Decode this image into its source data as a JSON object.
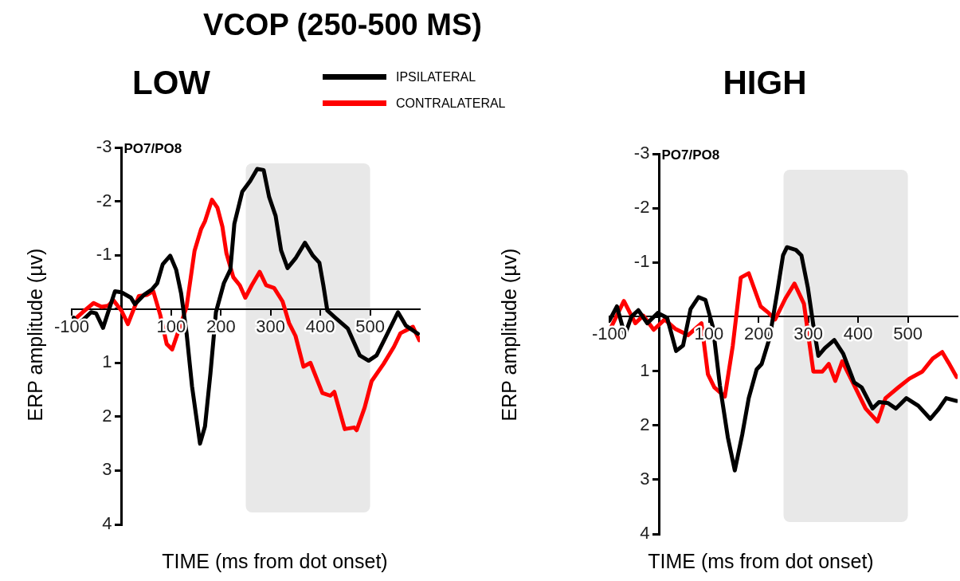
{
  "chart_data": [
    {
      "type": "line",
      "title": "VCOP (250-500 MS)",
      "subtitle": "LOW",
      "xlabel": "TIME (ms from dot onset)",
      "ylabel": "ERP amplitude (µv)",
      "annotations": [
        "PO7/PO8"
      ],
      "xlim": [
        -100,
        600
      ],
      "xticks": [
        -100,
        {
          "value": 0,
          "label": null
        },
        100,
        200,
        300,
        400,
        500
      ],
      "ylim": [
        4,
        -3
      ],
      "yticks": [
        -3,
        -2,
        -1,
        {
          "value": 0,
          "label": null
        },
        1,
        2,
        3,
        4
      ],
      "grid": false,
      "legend": "top right",
      "marker": "none",
      "line_style": "solid",
      "bands": [
        {
          "axis": "x",
          "from": 250,
          "to": 500,
          "color": "#e8e8e8"
        }
      ],
      "series": [
        {
          "name": "IPSILATERAL",
          "color": "#000000",
          "x": [
            -96,
            -86,
            -61,
            -51,
            -37,
            -13,
            0,
            19,
            27,
            45,
            61,
            72,
            83,
            98,
            110,
            120,
            131,
            142,
            158,
            168,
            179,
            190,
            206,
            219,
            227,
            243,
            259,
            273,
            286,
            297,
            310,
            321,
            334,
            350,
            369,
            385,
            398,
            406,
            414,
            430,
            455,
            479,
            497,
            513,
            532,
            556,
            572,
            596
          ],
          "values": [
            0.16,
            0.28,
            0.06,
            0.08,
            0.35,
            -0.33,
            -0.31,
            -0.21,
            -0.09,
            -0.26,
            -0.36,
            -0.48,
            -0.83,
            -0.99,
            -0.73,
            -0.29,
            0.45,
            1.44,
            2.5,
            2.18,
            1.19,
            0.06,
            -0.48,
            -0.73,
            -1.58,
            -2.18,
            -2.38,
            -2.6,
            -2.58,
            -2.08,
            -1.73,
            -1.09,
            -0.76,
            -0.94,
            -1.23,
            -0.99,
            -0.86,
            -0.44,
            0.03,
            0.16,
            0.36,
            0.86,
            0.96,
            0.86,
            0.51,
            0.06,
            0.31,
            0.46
          ]
        },
        {
          "name": "CONTRALATERAL",
          "color": "#ff0000",
          "x": [
            -96,
            -78,
            -56,
            -40,
            -27,
            -16,
            0,
            13,
            35,
            51,
            64,
            78,
            91,
            102,
            115,
            131,
            147,
            160,
            168,
            182,
            193,
            203,
            211,
            225,
            238,
            249,
            262,
            278,
            291,
            307,
            324,
            337,
            350,
            366,
            380,
            404,
            420,
            428,
            449,
            468,
            473,
            489,
            503,
            527,
            548,
            561,
            586,
            599
          ],
          "values": [
            0.21,
            0.06,
            -0.11,
            -0.04,
            -0.06,
            -0.16,
            0.03,
            0.28,
            -0.24,
            -0.26,
            -0.33,
            0.11,
            0.65,
            0.75,
            0.4,
            -0.04,
            -1.08,
            -1.48,
            -1.63,
            -2.03,
            -1.88,
            -1.53,
            -1.04,
            -0.59,
            -0.44,
            -0.21,
            -0.44,
            -0.69,
            -0.44,
            -0.39,
            -0.14,
            0.26,
            0.5,
            1.07,
            1.0,
            1.56,
            1.61,
            1.54,
            2.23,
            2.2,
            2.25,
            1.83,
            1.34,
            1.02,
            0.7,
            0.45,
            0.33,
            0.58
          ]
        }
      ]
    },
    {
      "type": "line",
      "title": "HIGH",
      "xlabel": "TIME (ms from dot onset)",
      "ylabel": "ERP amplitude (µv)",
      "annotations": [
        "PO7/PO8"
      ],
      "xlim": [
        -100,
        600
      ],
      "xticks": [
        -100,
        {
          "value": 0,
          "label": null
        },
        100,
        200,
        300,
        400,
        500
      ],
      "ylim": [
        4,
        -3
      ],
      "yticks": [
        -3,
        -2,
        -1,
        {
          "value": 0,
          "label": null
        },
        1,
        2,
        3,
        4
      ],
      "grid": false,
      "marker": "none",
      "line_style": "solid",
      "bands": [
        {
          "axis": "x",
          "from": 250,
          "to": 500,
          "color": "#e8e8e8"
        }
      ],
      "series": [
        {
          "color": "#000000",
          "x": [
            -100,
            -85,
            -69,
            -56,
            -42,
            -24,
            -3,
            16,
            34,
            48,
            63,
            79,
            93,
            108,
            122,
            138,
            152,
            167,
            180,
            196,
            206,
            222,
            238,
            249,
            257,
            275,
            286,
            299,
            310,
            320,
            333,
            352,
            370,
            392,
            407,
            429,
            442,
            460,
            476,
            497,
            521,
            545,
            561,
            577,
            598
          ],
          "values": [
            0.07,
            -0.19,
            0.34,
            0,
            -0.12,
            0.12,
            -0.07,
            0.02,
            0.63,
            0.53,
            -0.14,
            -0.36,
            -0.31,
            0.19,
            1.26,
            2.22,
            2.83,
            2.17,
            1.5,
            0.97,
            0.87,
            0.39,
            -0.49,
            -1.13,
            -1.28,
            -1.23,
            -1.13,
            -0.53,
            0.16,
            0.72,
            0.58,
            0.43,
            0.68,
            1.21,
            1.3,
            1.69,
            1.57,
            1.59,
            1.69,
            1.5,
            1.64,
            1.88,
            1.71,
            1.5,
            1.55
          ]
        },
        {
          "color": "#ff0000",
          "x": [
            -98,
            -71,
            -48,
            -32,
            -11,
            11,
            32,
            58,
            85,
            98,
            111,
            132,
            148,
            164,
            180,
            204,
            220,
            233,
            254,
            272,
            291,
            310,
            328,
            341,
            354,
            368,
            392,
            415,
            439,
            455,
            481,
            503,
            529,
            550,
            569,
            582,
            598
          ],
          "values": [
            0.22,
            -0.29,
            0.12,
            -0.02,
            0.24,
            0.05,
            0.22,
            0.34,
            0.12,
            1.06,
            1.3,
            1.47,
            0.53,
            -0.72,
            -0.8,
            -0.19,
            -0.07,
            0.05,
            -0.34,
            -0.61,
            -0.24,
            1.01,
            1.01,
            0.87,
            1.18,
            0.82,
            1.26,
            1.69,
            1.93,
            1.5,
            1.3,
            1.14,
            1.01,
            0.77,
            0.65,
            0.85,
            1.11
          ]
        }
      ]
    }
  ]
}
